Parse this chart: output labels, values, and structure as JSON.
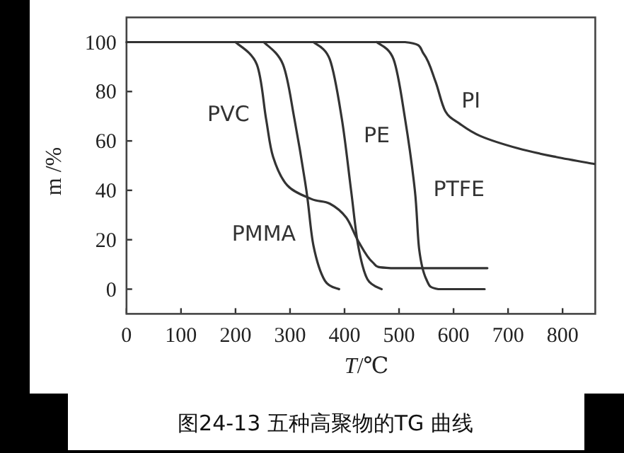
{
  "chart_data": {
    "type": "line",
    "title": "图24-13 五种高聚物的TG 曲线",
    "xlabel": "*T*/℃",
    "ylabel": "m /%",
    "xlim": [
      0,
      860
    ],
    "ylim": [
      -10,
      110
    ],
    "xticks": [
      0,
      100,
      200,
      300,
      400,
      500,
      600,
      700,
      800
    ],
    "yticks": [
      0,
      20,
      40,
      60,
      80,
      100
    ],
    "grid": false,
    "marker": "none",
    "line_style": "solid",
    "series": [
      {
        "name": "PVC",
        "color": "#333333",
        "x": [
          200,
          239,
          256,
          269,
          295,
          339,
          373,
          403,
          425,
          451,
          485,
          662
        ],
        "values": [
          100,
          91,
          69,
          53.5,
          42,
          36.5,
          34.6,
          29,
          19.5,
          11,
          8.5,
          8.5
        ]
      },
      {
        "name": "PMMA",
        "color": "#333333",
        "x": [
          252,
          287,
          308,
          330,
          343,
          364,
          390
        ],
        "values": [
          100,
          91,
          69,
          40,
          17.6,
          3.4,
          0
        ]
      },
      {
        "name": "PE",
        "color": "#333333",
        "x": [
          343,
          373,
          395,
          412,
          425,
          442,
          468
        ],
        "values": [
          100,
          93,
          69,
          40,
          17.6,
          4,
          0
        ]
      },
      {
        "name": "PTFE",
        "color": "#333333",
        "x": [
          459,
          490,
          511,
          529,
          537,
          550,
          572,
          657
        ],
        "values": [
          100,
          93,
          69,
          40,
          16,
          4,
          0,
          0
        ]
      },
      {
        "name": "PI",
        "color": "#333333",
        "x": [
          0,
          511,
          546,
          567,
          585,
          611,
          649,
          718,
          788,
          858
        ],
        "values": [
          100,
          100,
          95,
          84,
          72,
          67,
          62,
          57,
          53.5,
          50.7
        ]
      }
    ]
  }
}
